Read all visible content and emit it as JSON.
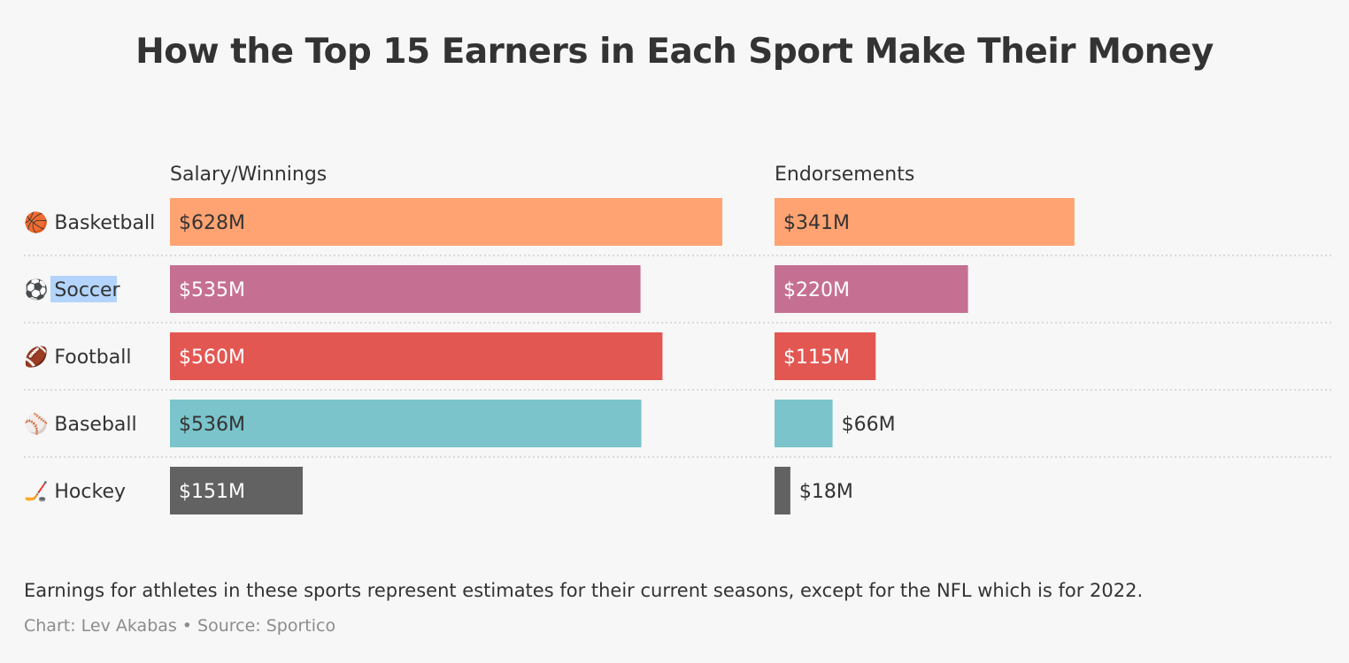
{
  "title": "How the Top 15 Earners in Each Sport Make Their Money",
  "chart_data": {
    "type": "bar",
    "columns": [
      {
        "name": "Salary/Winnings",
        "key": "salary"
      },
      {
        "name": "Endorsements",
        "key": "endorsements"
      }
    ],
    "rows": [
      {
        "icon": "🏀",
        "icon_name": "basketball-icon",
        "category": "Basketball",
        "salary": 628,
        "salary_label": "$628M",
        "endorsements": 341,
        "endorsements_label": "$341M",
        "color": "#ffa372",
        "text_color": "#333333"
      },
      {
        "icon": "⚽",
        "icon_name": "soccer-ball-icon",
        "category": "Soccer",
        "salary": 535,
        "salary_label": "$535M",
        "endorsements": 220,
        "endorsements_label": "$220M",
        "color": "#c57092",
        "text_color": "#ffffff",
        "label_highlighted": true
      },
      {
        "icon": "🏈",
        "icon_name": "football-icon",
        "category": "Football",
        "salary": 560,
        "salary_label": "$560M",
        "endorsements": 115,
        "endorsements_label": "$115M",
        "color": "#e35752",
        "text_color": "#ffffff"
      },
      {
        "icon": "⚾",
        "icon_name": "baseball-icon",
        "category": "Baseball",
        "salary": 536,
        "salary_label": "$536M",
        "endorsements": 66,
        "endorsements_label": "$66M",
        "color": "#7bc4cb",
        "text_color": "#333333"
      },
      {
        "icon": "🏒",
        "icon_name": "hockey-stick-icon",
        "category": "Hockey",
        "salary": 151,
        "salary_label": "$151M",
        "endorsements": 18,
        "endorsements_label": "$18M",
        "color": "#626262",
        "text_color": "#ffffff"
      }
    ],
    "separator_style": "dotted"
  },
  "note": "Earnings for athletes in these sports represent estimates for their current seasons, except for the NFL which is for 2022.",
  "credit": {
    "chart": "Chart: Lev Akabas",
    "separator": "•",
    "source": "Source: Sportico"
  },
  "colors": {
    "background": "#f7f7f7",
    "text": "#333333",
    "muted": "#8c8c8c",
    "separator": "#d0d0d0",
    "selection": "#b3d4fc"
  }
}
